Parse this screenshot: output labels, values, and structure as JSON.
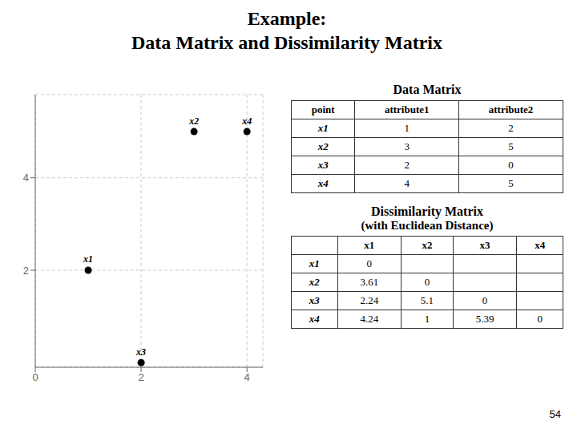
{
  "chart_data": [
    {
      "type": "scatter",
      "title": "Example:",
      "subtitle": "Data Matrix and Dissimilarity Matrix",
      "x": [
        1,
        3,
        2,
        4
      ],
      "values": [
        2,
        5,
        0,
        5
      ],
      "labels": [
        "x1",
        "x2",
        "x3",
        "x4"
      ],
      "color": "#000000",
      "xlim": [
        0,
        4.3
      ],
      "ylim": [
        -0.1,
        5.8
      ],
      "xticks": [
        0,
        2,
        4
      ],
      "yticks": [
        2,
        4
      ],
      "grid": true,
      "annotations": [
        "54"
      ]
    },
    {
      "type": "table",
      "title": "Data Matrix",
      "columns": [
        "point",
        "attribute1",
        "attribute2"
      ],
      "rows": [
        [
          "x1",
          1,
          2
        ],
        [
          "x2",
          3,
          5
        ],
        [
          "x3",
          2,
          0
        ],
        [
          "x4",
          4,
          5
        ]
      ]
    },
    {
      "type": "table",
      "title": "Dissimilarity Matrix",
      "subtitle": "(with Euclidean Distance)",
      "columns": [
        null,
        "x1",
        "x2",
        "x3",
        "x4"
      ],
      "rows": [
        [
          "x1",
          0,
          null,
          null,
          null
        ],
        [
          "x2",
          3.61,
          0,
          null,
          null
        ],
        [
          "x3",
          2.24,
          5.1,
          0,
          null
        ],
        [
          "x4",
          4.24,
          1,
          5.39,
          0
        ]
      ]
    }
  ]
}
